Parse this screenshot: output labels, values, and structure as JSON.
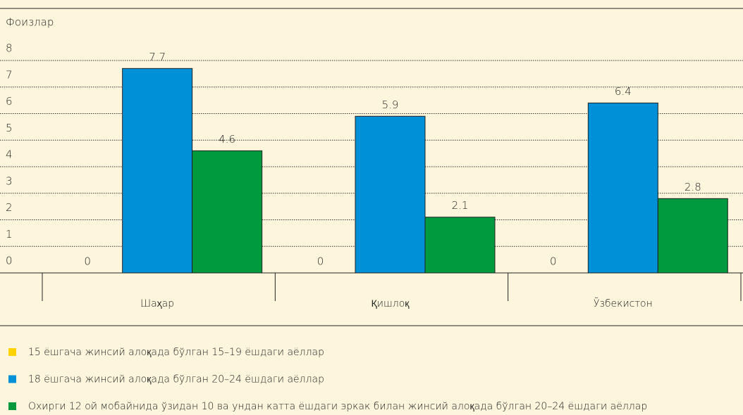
{
  "chart_data": {
    "type": "bar",
    "ylabel": "Фоизлар",
    "categories": [
      "Шаҳар",
      "Қишлоқ",
      "Ўзбекистон"
    ],
    "series": [
      {
        "name": "15 ёшгача жинсий алоқада бўлган 15–19 ёшдаги аёллар",
        "color": "#ffd200",
        "values": [
          0,
          0,
          0
        ]
      },
      {
        "name": "18 ёшгача жинсий алоқада бўлган 20–24 ёшдаги аёллар",
        "color": "#0090d8",
        "values": [
          7.7,
          5.9,
          6.4
        ]
      },
      {
        "name": "Охирги 12 ой мобайнида ўзидан 10 ва ундан катта ёшдаги эркак билан жинсий алоқада бўлган 20–24 ёшдаги аёллар",
        "color": "#009a3e",
        "values": [
          4.6,
          2.1,
          2.8
        ]
      }
    ],
    "ylim": [
      0,
      8
    ],
    "yticks": [
      0,
      1,
      2,
      3,
      4,
      5,
      6,
      7,
      8
    ],
    "grid": true,
    "legend": "bottom"
  }
}
